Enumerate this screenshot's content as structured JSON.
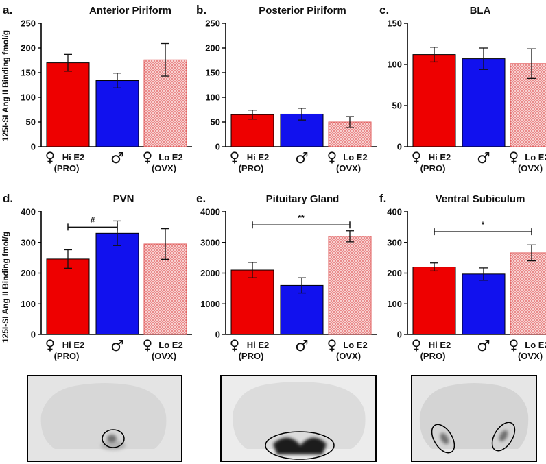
{
  "figure": {
    "ylabel_top": "125I-SI Ang II Binding fmol/g",
    "ylabel_bottom": "125I-SI Ang II Binding fmol/g",
    "colors": {
      "red": "#ee0000",
      "blue": "#1111ee",
      "pink_fill": "#f7d0d0",
      "pink_dot": "#e05a5a"
    },
    "category_labels": [
      {
        "symbol": "♀",
        "line1": "Hi E2",
        "line2": "(PRO)"
      },
      {
        "symbol": "♂",
        "line1": "",
        "line2": ""
      },
      {
        "symbol": "♀",
        "line1": "Lo E2",
        "line2": "(OVX)"
      }
    ]
  },
  "chart_data": [
    {
      "type": "bar",
      "letter": "a.",
      "title": "Anterior Piriform",
      "categories": [
        "Hi E2 (PRO)",
        "male",
        "Lo E2 (OVX)"
      ],
      "values": [
        170,
        134,
        176
      ],
      "errors": [
        17,
        15,
        33
      ],
      "ylim": [
        0,
        250
      ],
      "yticks": [
        0,
        50,
        100,
        150,
        200,
        250
      ],
      "significance": null
    },
    {
      "type": "bar",
      "letter": "b.",
      "title": "Posterior Piriform",
      "categories": [
        "Hi E2 (PRO)",
        "male",
        "Lo E2 (OVX)"
      ],
      "values": [
        65,
        66,
        50
      ],
      "errors": [
        9,
        12,
        11
      ],
      "ylim": [
        0,
        250
      ],
      "yticks": [
        0,
        50,
        100,
        150,
        200,
        250
      ],
      "significance": null
    },
    {
      "type": "bar",
      "letter": "c.",
      "title": "BLA",
      "categories": [
        "Hi E2 (PRO)",
        "male",
        "Lo E2 (OVX)"
      ],
      "values": [
        112,
        107,
        101
      ],
      "errors": [
        9,
        13,
        18
      ],
      "ylim": [
        0,
        150
      ],
      "yticks": [
        0,
        50,
        100,
        150
      ],
      "significance": null
    },
    {
      "type": "bar",
      "letter": "d.",
      "title": "PVN",
      "categories": [
        "Hi E2 (PRO)",
        "male",
        "Lo E2 (OVX)"
      ],
      "values": [
        246,
        330,
        295
      ],
      "errors": [
        30,
        40,
        50
      ],
      "ylim": [
        0,
        400
      ],
      "yticks": [
        0,
        100,
        200,
        300,
        400
      ],
      "significance": {
        "from": 0,
        "to": 1,
        "at": 350,
        "label": "#"
      }
    },
    {
      "type": "bar",
      "letter": "e.",
      "title": "Pituitary Gland",
      "categories": [
        "Hi E2 (PRO)",
        "male",
        "Lo E2 (OVX)"
      ],
      "values": [
        2100,
        1600,
        3200
      ],
      "errors": [
        250,
        250,
        180
      ],
      "ylim": [
        0,
        4000
      ],
      "yticks": [
        0,
        1000,
        2000,
        3000,
        4000
      ],
      "significance": {
        "from": 0,
        "to": 2,
        "at": 3570,
        "label": "**"
      }
    },
    {
      "type": "bar",
      "letter": "f.",
      "title": "Ventral Subiculum",
      "categories": [
        "Hi E2 (PRO)",
        "male",
        "Lo E2 (OVX)"
      ],
      "values": [
        220,
        197,
        266
      ],
      "errors": [
        13,
        20,
        26
      ],
      "ylim": [
        0,
        400
      ],
      "yticks": [
        0,
        100,
        200,
        300,
        400
      ],
      "significance": {
        "from": 0,
        "to": 2,
        "at": 335,
        "label": "*"
      }
    }
  ],
  "images": [
    {
      "region": "PVN",
      "highlight": "single small ellipse over central ventral signal"
    },
    {
      "region": "Pituitary Gland",
      "highlight": "large ellipse over dark ventral pituitary"
    },
    {
      "region": "Ventral Subiculum",
      "highlight": "two tilted ellipses over bilateral signal"
    }
  ]
}
